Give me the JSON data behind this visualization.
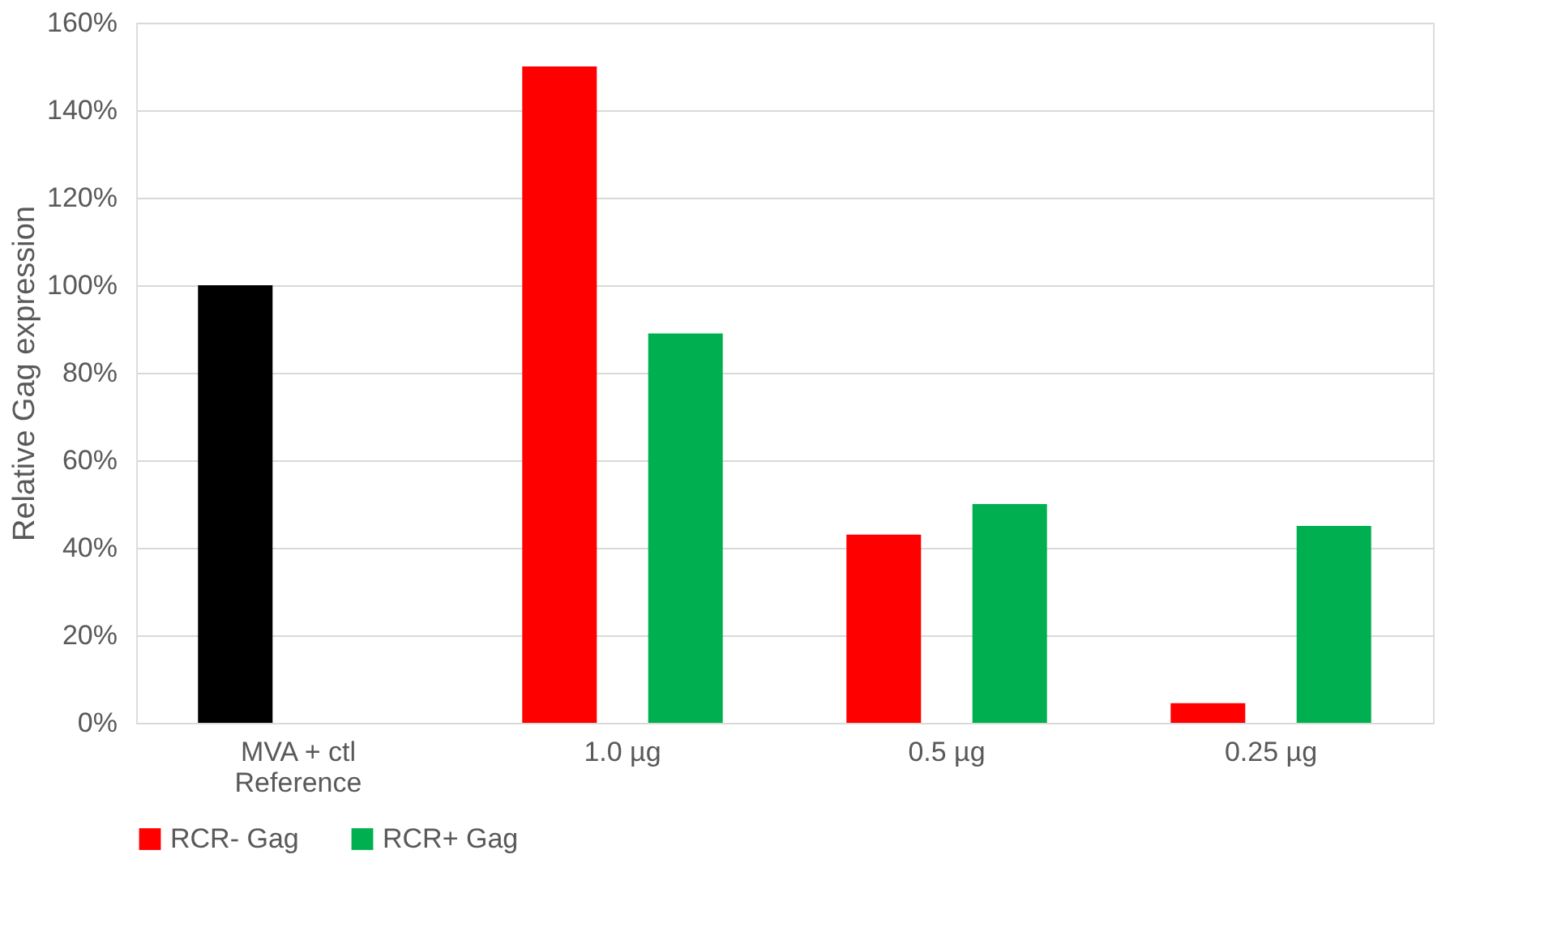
{
  "chart_data": {
    "type": "bar",
    "ylabel": "Relative Gag expression",
    "categories": [
      "MVA + ctl\nReference",
      "1.0 µg",
      "0.5 µg",
      "0.25 µg"
    ],
    "series": [
      {
        "name": "RCR- Gag",
        "color": "#ff0000",
        "colors": [
          "#000000",
          "#ff0000",
          "#ff0000",
          "#ff0000"
        ],
        "values": [
          100,
          150,
          43,
          4.5
        ]
      },
      {
        "name": "RCR+ Gag",
        "color": "#00b050",
        "values": [
          null,
          89,
          50,
          45
        ]
      }
    ],
    "ylim": [
      0,
      160
    ],
    "yticks": [
      {
        "value": 0,
        "label": "0%"
      },
      {
        "value": 20,
        "label": "20%"
      },
      {
        "value": 40,
        "label": "40%"
      },
      {
        "value": 60,
        "label": "60%"
      },
      {
        "value": 80,
        "label": "80%"
      },
      {
        "value": 100,
        "label": "100%"
      },
      {
        "value": 120,
        "label": "120%"
      },
      {
        "value": 140,
        "label": "140%"
      },
      {
        "value": 160,
        "label": "160%"
      }
    ],
    "grid": "y",
    "legend": "bottom"
  }
}
